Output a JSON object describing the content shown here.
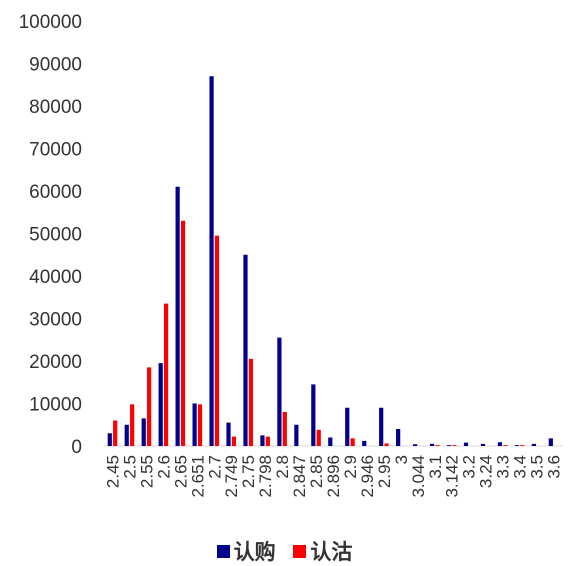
{
  "chart_data": {
    "type": "bar",
    "title": "",
    "xlabel": "",
    "ylabel": "",
    "ylim": [
      0,
      100000
    ],
    "yticks": [
      0,
      10000,
      20000,
      30000,
      40000,
      50000,
      60000,
      70000,
      80000,
      90000,
      100000
    ],
    "categories": [
      "2.45",
      "2.5",
      "2.55",
      "2.6",
      "2.65",
      "2.651",
      "2.7",
      "2.749",
      "2.75",
      "2.798",
      "2.8",
      "2.847",
      "2.85",
      "2.896",
      "2.9",
      "2.946",
      "2.95",
      "3",
      "3.044",
      "3.1",
      "3.142",
      "3.2",
      "3.24",
      "3.3",
      "3.4",
      "3.5",
      "3.6"
    ],
    "series": [
      {
        "name": "认购",
        "color": "#00008B",
        "values": [
          3000,
          5000,
          6500,
          19500,
          61000,
          10000,
          87000,
          5500,
          45000,
          2500,
          25500,
          5000,
          14500,
          2000,
          9000,
          1200,
          9000,
          4000,
          400,
          500,
          200,
          800,
          500,
          900,
          200,
          500,
          1800
        ]
      },
      {
        "name": "认沽",
        "color": "#FF0000",
        "values": [
          6000,
          9800,
          18500,
          33500,
          53000,
          9800,
          49500,
          2200,
          20500,
          2200,
          8000,
          0,
          3800,
          0,
          1800,
          0,
          600,
          0,
          0,
          200,
          200,
          0,
          0,
          200,
          200,
          0,
          0
        ]
      }
    ],
    "legend_position": "bottom",
    "grid": false
  }
}
